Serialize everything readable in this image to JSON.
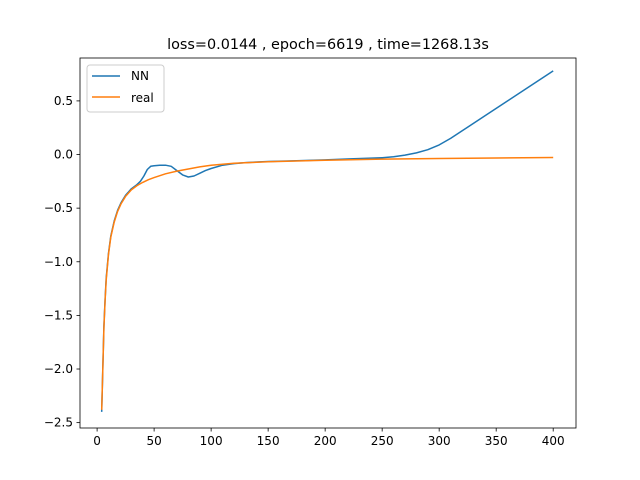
{
  "chart_data": {
    "type": "line",
    "title": "loss=0.0144 , epoch=6619 , time=1268.13s",
    "xlabel": "",
    "ylabel": "",
    "xlim": [
      -15,
      420
    ],
    "ylim": [
      -2.55,
      0.9
    ],
    "x_ticks": [
      {
        "value": 0,
        "label": "0"
      },
      {
        "value": 50,
        "label": "50"
      },
      {
        "value": 100,
        "label": "100"
      },
      {
        "value": 150,
        "label": "150"
      },
      {
        "value": 200,
        "label": "200"
      },
      {
        "value": 250,
        "label": "250"
      },
      {
        "value": 300,
        "label": "300"
      },
      {
        "value": 350,
        "label": "350"
      },
      {
        "value": 400,
        "label": "400"
      }
    ],
    "y_ticks": [
      {
        "value": 0.5,
        "label": "0.5"
      },
      {
        "value": 0.0,
        "label": "0.0"
      },
      {
        "value": -0.5,
        "label": "−0.5"
      },
      {
        "value": -1.0,
        "label": "−1.0"
      },
      {
        "value": -1.5,
        "label": "−1.5"
      },
      {
        "value": -2.0,
        "label": "−2.0"
      },
      {
        "value": -2.5,
        "label": "−2.5"
      }
    ],
    "grid": false,
    "legend_position": "top-left",
    "series": [
      {
        "name": "NN",
        "color": "#1f77b4",
        "points": [
          [
            4,
            -2.4
          ],
          [
            5,
            -2.0
          ],
          [
            6,
            -1.6
          ],
          [
            7,
            -1.35
          ],
          [
            8,
            -1.15
          ],
          [
            10,
            -0.92
          ],
          [
            12,
            -0.76
          ],
          [
            15,
            -0.62
          ],
          [
            18,
            -0.52
          ],
          [
            21,
            -0.45
          ],
          [
            25,
            -0.38
          ],
          [
            30,
            -0.32
          ],
          [
            35,
            -0.28
          ],
          [
            38,
            -0.25
          ],
          [
            41,
            -0.2
          ],
          [
            44,
            -0.14
          ],
          [
            47,
            -0.11
          ],
          [
            50,
            -0.105
          ],
          [
            55,
            -0.1
          ],
          [
            60,
            -0.1
          ],
          [
            65,
            -0.11
          ],
          [
            70,
            -0.15
          ],
          [
            75,
            -0.19
          ],
          [
            80,
            -0.21
          ],
          [
            85,
            -0.2
          ],
          [
            90,
            -0.175
          ],
          [
            95,
            -0.15
          ],
          [
            100,
            -0.13
          ],
          [
            110,
            -0.1
          ],
          [
            120,
            -0.085
          ],
          [
            130,
            -0.075
          ],
          [
            150,
            -0.065
          ],
          [
            175,
            -0.058
          ],
          [
            200,
            -0.05
          ],
          [
            225,
            -0.04
          ],
          [
            250,
            -0.03
          ],
          [
            260,
            -0.02
          ],
          [
            270,
            -0.005
          ],
          [
            280,
            0.015
          ],
          [
            290,
            0.045
          ],
          [
            300,
            0.09
          ],
          [
            310,
            0.15
          ],
          [
            320,
            0.22
          ],
          [
            340,
            0.36
          ],
          [
            360,
            0.5
          ],
          [
            380,
            0.64
          ],
          [
            400,
            0.78
          ]
        ]
      },
      {
        "name": "real",
        "color": "#ff7f0e",
        "points": [
          [
            4,
            -2.38
          ],
          [
            5,
            -2.0
          ],
          [
            6,
            -1.62
          ],
          [
            7,
            -1.36
          ],
          [
            8,
            -1.17
          ],
          [
            10,
            -0.93
          ],
          [
            12,
            -0.77
          ],
          [
            15,
            -0.63
          ],
          [
            18,
            -0.53
          ],
          [
            21,
            -0.46
          ],
          [
            25,
            -0.39
          ],
          [
            30,
            -0.33
          ],
          [
            35,
            -0.29
          ],
          [
            40,
            -0.26
          ],
          [
            45,
            -0.235
          ],
          [
            50,
            -0.215
          ],
          [
            60,
            -0.18
          ],
          [
            70,
            -0.155
          ],
          [
            80,
            -0.135
          ],
          [
            90,
            -0.115
          ],
          [
            100,
            -0.1
          ],
          [
            110,
            -0.09
          ],
          [
            120,
            -0.082
          ],
          [
            130,
            -0.077
          ],
          [
            150,
            -0.068
          ],
          [
            175,
            -0.06
          ],
          [
            200,
            -0.053
          ],
          [
            250,
            -0.043
          ],
          [
            300,
            -0.037
          ],
          [
            350,
            -0.032
          ],
          [
            400,
            -0.028
          ]
        ]
      }
    ]
  }
}
